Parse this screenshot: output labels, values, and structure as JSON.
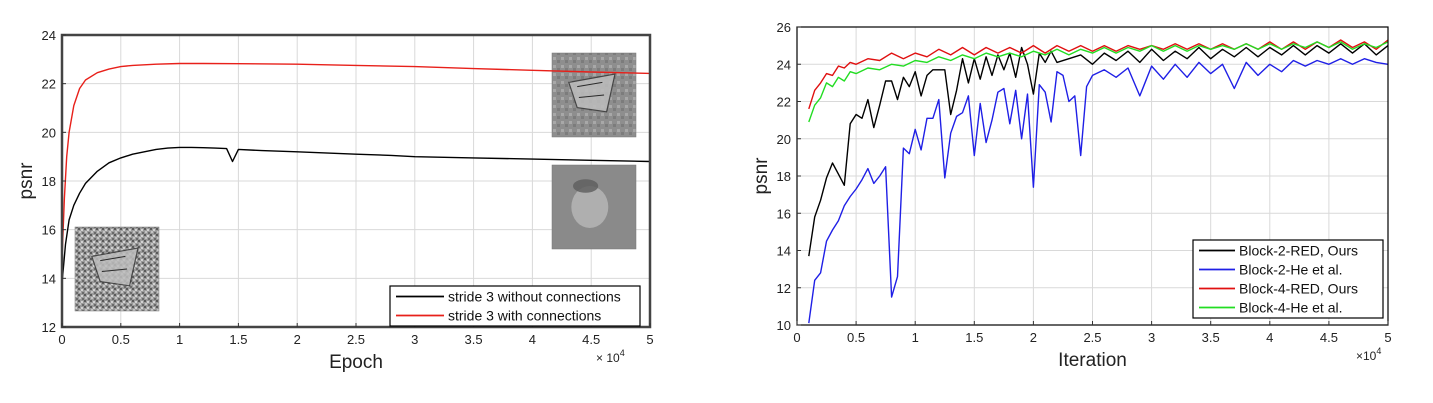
{
  "chart_data": [
    {
      "type": "line",
      "xlabel": "Epoch",
      "ylabel": "psnr",
      "x_multiplier_label": "× 10",
      "x_multiplier_exp": "4",
      "xlim": [
        0,
        5
      ],
      "ylim": [
        12,
        24
      ],
      "xticks": [
        0,
        0.5,
        1,
        1.5,
        2,
        2.5,
        3,
        3.5,
        4,
        4.5,
        5
      ],
      "xtick_labels": [
        "0",
        "0.5",
        "1",
        "1.5",
        "2",
        "2.5",
        "3",
        "3.5",
        "4",
        "4.5",
        "5"
      ],
      "yticks": [
        12,
        14,
        16,
        18,
        20,
        22,
        24
      ],
      "ytick_labels": [
        "12",
        "14",
        "16",
        "18",
        "20",
        "22",
        "24"
      ],
      "grid": true,
      "legend_position": "bottom-right",
      "series": [
        {
          "name": "stride 3 without connections",
          "color": "#000000",
          "x": [
            0,
            0.03,
            0.06,
            0.1,
            0.15,
            0.2,
            0.3,
            0.4,
            0.5,
            0.6,
            0.7,
            0.8,
            0.9,
            1.0,
            1.1,
            1.2,
            1.3,
            1.4,
            1.45,
            1.5,
            1.7,
            2.0,
            2.5,
            2.8,
            3.0,
            3.5,
            4.0,
            4.5,
            5.0
          ],
          "values": [
            13.8,
            15.4,
            16.4,
            17.0,
            17.5,
            17.9,
            18.4,
            18.75,
            18.95,
            19.1,
            19.2,
            19.3,
            19.35,
            19.38,
            19.38,
            19.37,
            19.35,
            19.33,
            18.8,
            19.3,
            19.25,
            19.2,
            19.1,
            19.05,
            19.0,
            18.95,
            18.9,
            18.85,
            18.8
          ]
        },
        {
          "name": "stride 3 with connections",
          "color": "#e8201a",
          "x": [
            0,
            0.02,
            0.04,
            0.06,
            0.1,
            0.15,
            0.2,
            0.3,
            0.4,
            0.5,
            0.6,
            0.8,
            1.0,
            1.2,
            1.5,
            2.0,
            2.5,
            3.0,
            3.5,
            4.0,
            4.5,
            5.0
          ],
          "values": [
            14.8,
            17.3,
            19.0,
            20.0,
            21.1,
            21.8,
            22.15,
            22.45,
            22.6,
            22.7,
            22.75,
            22.8,
            22.83,
            22.83,
            22.82,
            22.8,
            22.75,
            22.7,
            22.62,
            22.55,
            22.48,
            22.42
          ]
        }
      ],
      "inset_images": [
        "butterfly-noisy-input",
        "butterfly-output-with-connections",
        "butterfly-output-without-connections"
      ]
    },
    {
      "type": "line",
      "xlabel": "Iteration",
      "ylabel": "psnr",
      "x_multiplier_label": "×10",
      "x_multiplier_exp": "4",
      "xlim": [
        0,
        5
      ],
      "ylim": [
        10,
        26
      ],
      "xticks": [
        0,
        0.5,
        1,
        1.5,
        2,
        2.5,
        3,
        3.5,
        4,
        4.5,
        5
      ],
      "xtick_labels": [
        "0",
        "0.5",
        "1",
        "1.5",
        "2",
        "2.5",
        "3",
        "3.5",
        "4",
        "4.5",
        "5"
      ],
      "yticks": [
        10,
        12,
        14,
        16,
        18,
        20,
        22,
        24,
        26
      ],
      "ytick_labels": [
        "10",
        "12",
        "14",
        "16",
        "18",
        "20",
        "22",
        "24",
        "26"
      ],
      "grid": true,
      "legend_position": "bottom-right",
      "series": [
        {
          "name": "Block-2-RED, Ours",
          "color": "#000000",
          "x": [
            0.1,
            0.15,
            0.2,
            0.25,
            0.3,
            0.35,
            0.4,
            0.45,
            0.5,
            0.55,
            0.6,
            0.65,
            0.7,
            0.75,
            0.8,
            0.85,
            0.9,
            0.95,
            1.0,
            1.05,
            1.1,
            1.15,
            1.2,
            1.25,
            1.3,
            1.35,
            1.4,
            1.45,
            1.5,
            1.55,
            1.6,
            1.65,
            1.7,
            1.75,
            1.8,
            1.85,
            1.9,
            1.95,
            2.0,
            2.05,
            2.1,
            2.15,
            2.2,
            2.3,
            2.4,
            2.5,
            2.6,
            2.7,
            2.8,
            2.9,
            3.0,
            3.1,
            3.2,
            3.3,
            3.4,
            3.5,
            3.6,
            3.7,
            3.8,
            3.9,
            4.0,
            4.1,
            4.2,
            4.3,
            4.4,
            4.5,
            4.6,
            4.7,
            4.8,
            4.9,
            5.0
          ],
          "values": [
            13.7,
            15.8,
            16.7,
            17.9,
            18.7,
            18.1,
            17.5,
            20.8,
            21.3,
            21.1,
            22.1,
            20.6,
            21.8,
            23.1,
            23.1,
            22.1,
            23.3,
            22.8,
            23.6,
            22.3,
            23.4,
            23.7,
            23.7,
            23.7,
            21.3,
            22.6,
            24.3,
            23.0,
            24.3,
            23.2,
            24.4,
            23.4,
            24.5,
            23.7,
            24.6,
            23.3,
            24.9,
            24.0,
            22.4,
            24.6,
            24.1,
            24.7,
            24.1,
            24.3,
            24.5,
            24.0,
            24.6,
            24.2,
            24.7,
            24.1,
            24.8,
            24.2,
            24.7,
            24.3,
            24.9,
            24.3,
            24.8,
            24.4,
            24.9,
            24.4,
            24.9,
            24.5,
            25.0,
            24.5,
            25.0,
            24.6,
            25.1,
            24.6,
            25.1,
            24.5,
            25.0
          ]
        },
        {
          "name": "Block-2-He et al.",
          "color": "#1f1fe6",
          "x": [
            0.1,
            0.15,
            0.2,
            0.25,
            0.3,
            0.35,
            0.4,
            0.45,
            0.5,
            0.55,
            0.6,
            0.65,
            0.7,
            0.75,
            0.8,
            0.85,
            0.9,
            0.95,
            1.0,
            1.05,
            1.1,
            1.15,
            1.2,
            1.25,
            1.3,
            1.35,
            1.4,
            1.45,
            1.5,
            1.55,
            1.6,
            1.65,
            1.7,
            1.75,
            1.8,
            1.85,
            1.9,
            1.95,
            2.0,
            2.05,
            2.1,
            2.15,
            2.2,
            2.25,
            2.3,
            2.35,
            2.4,
            2.45,
            2.5,
            2.6,
            2.7,
            2.8,
            2.9,
            3.0,
            3.1,
            3.2,
            3.3,
            3.4,
            3.5,
            3.6,
            3.7,
            3.8,
            3.9,
            4.0,
            4.1,
            4.2,
            4.3,
            4.4,
            4.5,
            4.6,
            4.7,
            4.8,
            4.9,
            5.0
          ],
          "values": [
            10.1,
            12.4,
            12.8,
            14.5,
            15.1,
            15.6,
            16.4,
            16.9,
            17.3,
            17.8,
            18.4,
            17.6,
            18.0,
            18.5,
            11.5,
            12.6,
            19.5,
            19.2,
            20.5,
            19.4,
            21.1,
            21.1,
            22.1,
            17.9,
            20.3,
            21.2,
            21.4,
            22.3,
            19.1,
            21.9,
            19.8,
            21.0,
            22.5,
            22.7,
            20.8,
            22.6,
            20.0,
            22.4,
            17.4,
            22.9,
            22.5,
            20.9,
            23.6,
            23.4,
            22.0,
            22.3,
            19.1,
            22.8,
            23.4,
            23.7,
            23.3,
            23.8,
            22.3,
            23.9,
            23.2,
            24.0,
            23.3,
            24.1,
            23.5,
            24.0,
            22.7,
            24.1,
            23.4,
            24.0,
            23.6,
            24.2,
            23.9,
            24.2,
            24.0,
            24.3,
            24.0,
            24.3,
            24.1,
            24.0
          ]
        },
        {
          "name": "Block-4-RED, Ours",
          "color": "#e01010",
          "x": [
            0.1,
            0.15,
            0.2,
            0.25,
            0.3,
            0.35,
            0.4,
            0.45,
            0.5,
            0.6,
            0.7,
            0.8,
            0.9,
            1.0,
            1.1,
            1.2,
            1.3,
            1.4,
            1.5,
            1.6,
            1.7,
            1.8,
            1.9,
            2.0,
            2.1,
            2.2,
            2.3,
            2.4,
            2.5,
            2.6,
            2.7,
            2.8,
            2.9,
            3.0,
            3.1,
            3.2,
            3.3,
            3.4,
            3.5,
            3.6,
            3.7,
            3.8,
            3.9,
            4.0,
            4.1,
            4.2,
            4.3,
            4.4,
            4.5,
            4.6,
            4.7,
            4.8,
            4.9,
            5.0
          ],
          "values": [
            21.6,
            22.6,
            23.0,
            23.5,
            23.4,
            23.9,
            23.8,
            24.1,
            24.0,
            24.3,
            24.2,
            24.6,
            24.3,
            24.6,
            24.4,
            24.8,
            24.5,
            24.9,
            24.5,
            24.9,
            24.6,
            24.9,
            24.6,
            25.0,
            24.6,
            25.0,
            24.7,
            25.0,
            24.7,
            25.0,
            24.7,
            25.0,
            24.8,
            25.0,
            24.8,
            25.1,
            24.8,
            25.1,
            24.8,
            25.1,
            24.8,
            25.1,
            24.8,
            25.2,
            24.8,
            25.2,
            24.8,
            25.2,
            24.9,
            25.3,
            24.9,
            25.2,
            24.8,
            25.3
          ]
        },
        {
          "name": "Block-4-He et al.",
          "color": "#22dd22",
          "x": [
            0.1,
            0.15,
            0.2,
            0.25,
            0.3,
            0.35,
            0.4,
            0.45,
            0.5,
            0.6,
            0.7,
            0.8,
            0.9,
            1.0,
            1.1,
            1.2,
            1.3,
            1.4,
            1.5,
            1.6,
            1.7,
            1.8,
            1.9,
            2.0,
            2.1,
            2.2,
            2.3,
            2.4,
            2.5,
            2.6,
            2.7,
            2.8,
            2.9,
            3.0,
            3.1,
            3.2,
            3.3,
            3.4,
            3.5,
            3.6,
            3.7,
            3.8,
            3.9,
            4.0,
            4.1,
            4.2,
            4.3,
            4.4,
            4.5,
            4.6,
            4.7,
            4.8,
            4.9,
            5.0
          ],
          "values": [
            20.9,
            21.8,
            22.2,
            23.0,
            22.8,
            23.3,
            23.1,
            23.6,
            23.5,
            23.8,
            23.7,
            24.0,
            23.9,
            24.2,
            24.1,
            24.4,
            24.2,
            24.5,
            24.3,
            24.6,
            24.4,
            24.6,
            24.4,
            24.7,
            24.5,
            24.8,
            24.5,
            24.8,
            24.6,
            24.9,
            24.6,
            24.9,
            24.7,
            25.0,
            24.7,
            25.0,
            24.7,
            25.0,
            24.8,
            25.0,
            24.8,
            25.1,
            24.8,
            25.1,
            24.8,
            25.1,
            24.9,
            25.2,
            24.9,
            25.2,
            24.8,
            25.1,
            24.9,
            25.2
          ]
        }
      ]
    }
  ]
}
